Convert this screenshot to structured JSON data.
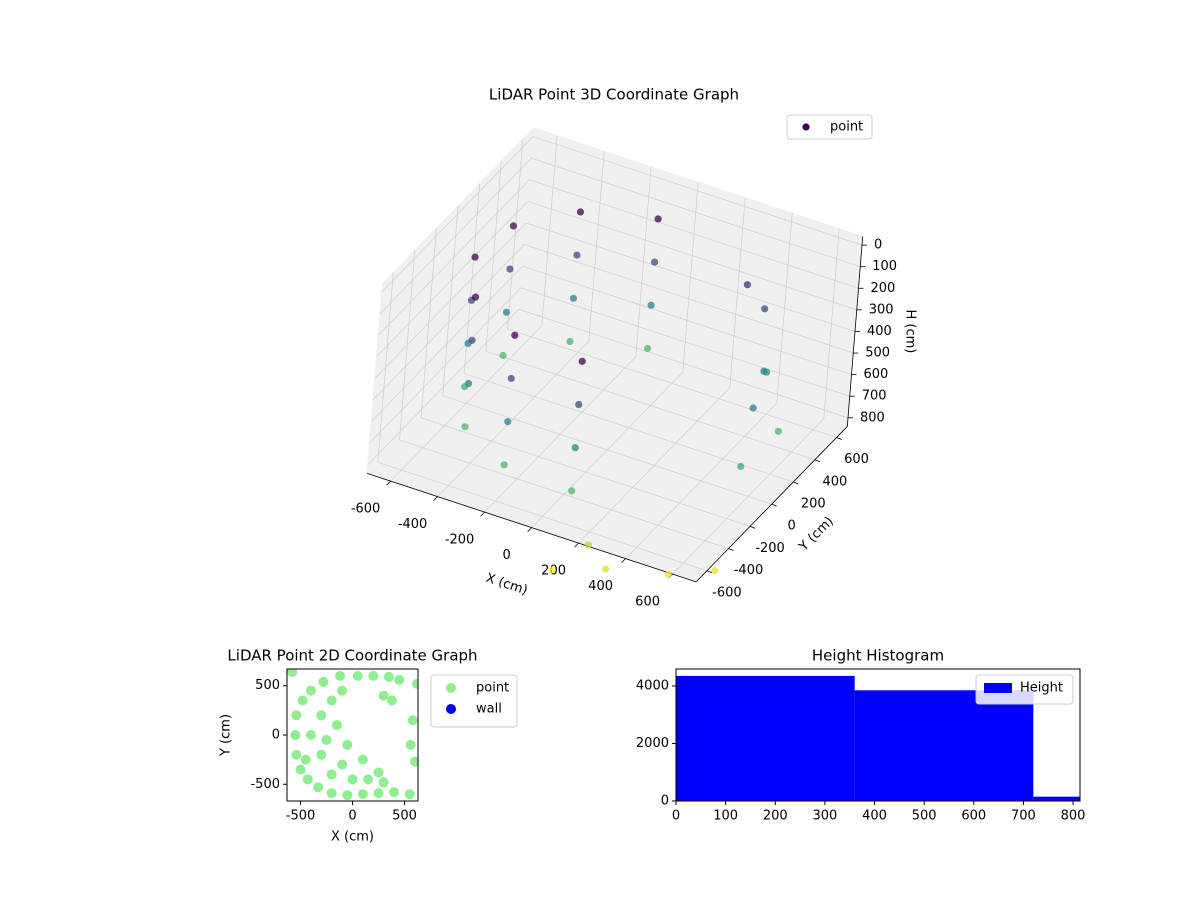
{
  "chart_data": [
    {
      "type": "scatter3d",
      "title": "LiDAR Point 3D Coordinate Graph",
      "xlabel": "X (cm)",
      "ylabel": "Y (cm)",
      "zlabel": "H (cm)",
      "series": [
        {
          "name": "point",
          "colormap": "viridis",
          "x": [
            -101,
            -101,
            -101,
            -101,
            -373,
            -373,
            -373,
            -373,
            -545,
            -545,
            -545,
            -545,
            -571,
            -571,
            -571,
            -571,
            -444,
            -444,
            -444,
            -444,
            -198,
            -198,
            -198,
            -198,
            101,
            101,
            101,
            101,
            400,
            500,
            550,
            450,
            300,
            600,
            580,
            300,
            500,
            100,
            650,
            200
          ],
          "y": [
            571,
            571,
            571,
            571,
            444,
            444,
            444,
            444,
            198,
            198,
            198,
            198,
            -101,
            -101,
            -101,
            -101,
            -373,
            -373,
            -373,
            -373,
            -545,
            -545,
            -545,
            -545,
            -571,
            -571,
            -571,
            -571,
            500,
            300,
            100,
            450,
            550,
            -100,
            300,
            -650,
            -500,
            -700,
            -400,
            -600
          ],
          "z": [
            100,
            300,
            500,
            700,
            100,
            300,
            500,
            700,
            100,
            300,
            500,
            700,
            100,
            300,
            500,
            700,
            100,
            300,
            500,
            700,
            100,
            300,
            500,
            700,
            100,
            300,
            500,
            700,
            300,
            450,
            500,
            550,
            250,
            650,
            700,
            950,
            980,
            1000,
            960,
            900
          ]
        }
      ],
      "xlim": [
        -700,
        700
      ],
      "ylim": [
        -700,
        700
      ],
      "zlim": [
        -40,
        840
      ],
      "zinvert": true,
      "xticks": [
        -600,
        -400,
        -200,
        0,
        200,
        400,
        600
      ],
      "yticks": [
        -600,
        -400,
        -200,
        0,
        200,
        400,
        600
      ],
      "zticks": [
        0,
        100,
        200,
        300,
        400,
        500,
        600,
        700,
        800
      ],
      "legend": "upper right",
      "grid": true
    },
    {
      "type": "scatter",
      "title": "LiDAR Point 2D Coordinate Graph",
      "xlabel": "X (cm)",
      "ylabel": "Y (cm)",
      "series": [
        {
          "name": "point",
          "color": "#90ee90",
          "x": [
            -550,
            -540,
            -500,
            -430,
            -330,
            -200,
            -50,
            100,
            250,
            400,
            550,
            -540,
            -480,
            -400,
            -280,
            -120,
            50,
            200,
            350,
            450,
            -400,
            -300,
            -200,
            -100,
            0,
            150,
            300,
            -300,
            -200,
            -150,
            -50,
            100,
            250,
            -250,
            -100,
            300,
            380,
            580,
            600,
            620,
            -580,
            560,
            -450
          ],
          "y": [
            0,
            -200,
            -350,
            -450,
            -530,
            -590,
            -610,
            -600,
            -590,
            -580,
            -600,
            200,
            350,
            450,
            540,
            600,
            600,
            600,
            590,
            560,
            0,
            -200,
            -400,
            -300,
            -450,
            -450,
            -480,
            200,
            350,
            100,
            -100,
            -250,
            -380,
            -50,
            450,
            400,
            350,
            150,
            -270,
            520,
            640,
            -100,
            -250
          ]
        },
        {
          "name": "wall",
          "color": "#0000ff",
          "x": [],
          "y": []
        }
      ],
      "xlim": [
        -630,
        630
      ],
      "ylim": [
        -670,
        670
      ],
      "xticks": [
        -500,
        0,
        500
      ],
      "yticks": [
        -500,
        0,
        500
      ],
      "legend": "outside right"
    },
    {
      "type": "histogram",
      "title": "Height Histogram",
      "bins": [
        0,
        360,
        720,
        814
      ],
      "series": [
        {
          "name": "Height",
          "color": "#0000ff",
          "values": [
            4350,
            3850,
            150
          ]
        }
      ],
      "xlim": [
        0,
        814
      ],
      "ylim": [
        0,
        4590
      ],
      "xticks": [
        0,
        100,
        200,
        300,
        400,
        500,
        600,
        700,
        800
      ],
      "yticks": [
        0,
        2000,
        4000
      ],
      "legend": "upper right"
    }
  ]
}
